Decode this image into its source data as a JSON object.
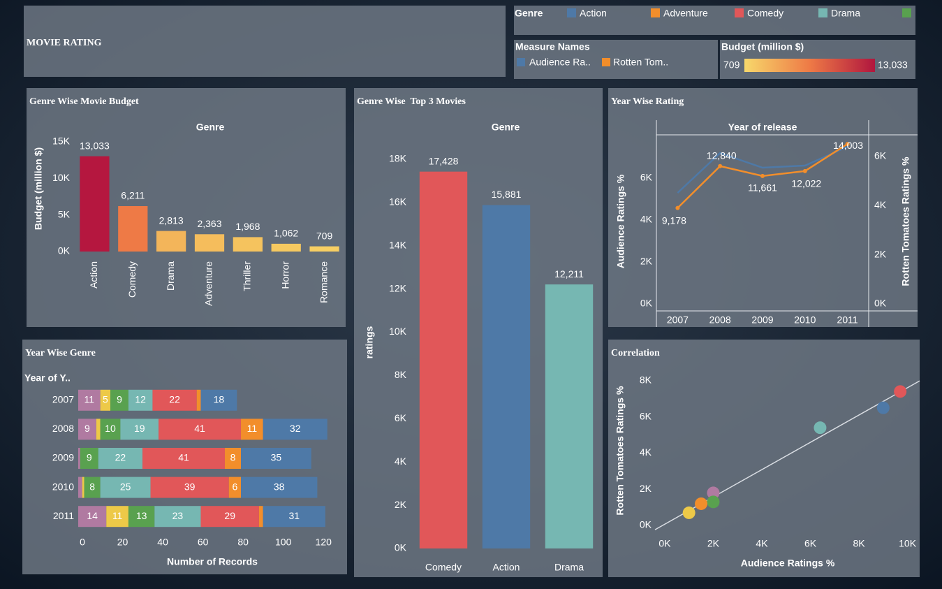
{
  "header": {
    "title": "MOVIE RATING"
  },
  "legends": {
    "genre_title": "Genre",
    "measure_title": "Measure Names",
    "budget": {
      "title": "Budget (million $)",
      "min": 709,
      "max": {
        "value": 13033,
        "label": "13,033"
      },
      "colors": [
        "#f7d86b",
        "#ee7a46",
        "#b0163e"
      ]
    }
  },
  "chart_data": [
    {
      "type": "bar",
      "title": "Genre Wise Movie Budget",
      "x_label": "Genre",
      "y_label": "Budget (million $)",
      "categories": [
        "Action",
        "Comedy",
        "Drama",
        "Adventure",
        "Thriller",
        "Horror",
        "Romance"
      ],
      "values": [
        13033,
        6211,
        2813,
        2363,
        1968,
        1062,
        709
      ],
      "value_labels": [
        "13,033",
        "6,211",
        "2,813",
        "2,363",
        "1,968",
        "1,062",
        "709"
      ],
      "colors": [
        "#b5173f",
        "#ee7a46",
        "#f3b55a",
        "#f5bd5c",
        "#f5c35e",
        "#f6c960",
        "#f7cf63"
      ],
      "ylim": [
        0,
        15000
      ],
      "yticks": [
        {
          "value": 0,
          "label": "0K"
        },
        {
          "value": 5000,
          "label": "5K"
        },
        {
          "value": 10000,
          "label": "10K"
        },
        {
          "value": 15000,
          "label": "15K"
        }
      ]
    },
    {
      "type": "bar",
      "title": "Genre Wise  Top 3 Movies",
      "x_label": "Genre",
      "y_label": "ratings",
      "categories": [
        "Comedy",
        "Action",
        "Drama"
      ],
      "values": [
        17428,
        15881,
        12211
      ],
      "value_labels": [
        "17,428",
        "15,881",
        "12,211"
      ],
      "colors": [
        "#e15759",
        "#4e79a7",
        "#76b7b2"
      ],
      "ylim": [
        0,
        19000
      ],
      "yticks": [
        {
          "value": 0,
          "label": "0K"
        },
        {
          "value": 2000,
          "label": "2K"
        },
        {
          "value": 4000,
          "label": "4K"
        },
        {
          "value": 6000,
          "label": "6K"
        },
        {
          "value": 8000,
          "label": "8K"
        },
        {
          "value": 10000,
          "label": "10K"
        },
        {
          "value": 12000,
          "label": "12K"
        },
        {
          "value": 14000,
          "label": "14K"
        },
        {
          "value": 16000,
          "label": "16K"
        },
        {
          "value": 18000,
          "label": "18K"
        }
      ]
    },
    {
      "type": "line",
      "title": "Year Wise Rating",
      "x_label": "Year of release",
      "y_label": "Audience Ratings %",
      "y2_label": "Rotten Tomatoes Ratings %",
      "categories": [
        "2007",
        "2008",
        "2009",
        "2010",
        "2011"
      ],
      "series": [
        {
          "name": "Audience Ra..",
          "color": "#4e79a7",
          "values": [
            5300,
            7200,
            6500,
            6600,
            7500
          ]
        },
        {
          "name": "Rotten Tom..",
          "color": "#f28e2b",
          "values": [
            3900,
            5600,
            5200,
            5400,
            6500
          ],
          "axis": "y2",
          "markers": true
        }
      ],
      "annotations": [
        {
          "value": 9178,
          "label": "9,178"
        },
        {
          "value": 12840,
          "label": "12,840"
        },
        {
          "value": 11661,
          "label": "11,661"
        },
        {
          "value": 12022,
          "label": "12,022"
        },
        {
          "value": 14003,
          "label": "14,003"
        }
      ],
      "ylim": [
        0,
        8100
      ],
      "yticks": [
        {
          "value": 0,
          "label": "0K"
        },
        {
          "value": 2000,
          "label": "2K"
        },
        {
          "value": 4000,
          "label": "4K"
        },
        {
          "value": 6000,
          "label": "6K"
        }
      ],
      "y2lim": [
        0,
        6900
      ],
      "y2ticks": [
        {
          "value": 0,
          "label": "0K"
        },
        {
          "value": 2000,
          "label": "2K"
        },
        {
          "value": 4000,
          "label": "4K"
        },
        {
          "value": 6000,
          "label": "6K"
        }
      ]
    },
    {
      "type": "barh",
      "title": "Year Wise Genre",
      "y_label": "Year of Y..",
      "x_label": "Number of Records",
      "categories": [
        "2007",
        "2008",
        "2009",
        "2010",
        "2011"
      ],
      "series": [
        {
          "name": null,
          "color": "#b07aa1",
          "values": [
            11,
            9,
            1,
            2,
            14
          ]
        },
        {
          "name": null,
          "color": "#edc948",
          "values": [
            5,
            2,
            0,
            1,
            11
          ]
        },
        {
          "name": null,
          "color": "#59a14f",
          "values": [
            9,
            10,
            9,
            8,
            13
          ]
        },
        {
          "name": "Drama",
          "color": "#76b7b2",
          "values": [
            12,
            19,
            22,
            25,
            23
          ]
        },
        {
          "name": "Comedy",
          "color": "#e15759",
          "values": [
            22,
            41,
            41,
            39,
            29
          ]
        },
        {
          "name": "Adventure",
          "color": "#f28e2b",
          "values": [
            2,
            11,
            8,
            6,
            2
          ]
        },
        {
          "name": "Action",
          "color": "#4e79a7",
          "values": [
            18,
            32,
            35,
            38,
            31
          ]
        }
      ],
      "xlim": [
        0,
        130
      ],
      "xticks": [
        0,
        20,
        40,
        60,
        80,
        100,
        120
      ]
    },
    {
      "type": "scatter",
      "title": "Correlation",
      "x_label": "Audience Ratings %",
      "y_label": "Rotten Tomatoes Ratings %",
      "x": [
        9700,
        9000,
        6400,
        2000,
        2000,
        1500,
        1000
      ],
      "values": [
        7400,
        6500,
        5400,
        1800,
        1300,
        1200,
        700
      ],
      "colors": [
        "#e15759",
        "#4e79a7",
        "#76b7b2",
        "#b07aa1",
        "#59a14f",
        "#f28e2b",
        "#edc948"
      ],
      "trend_line": true,
      "xlim": [
        -400,
        10500
      ],
      "xticks": [
        {
          "value": 0,
          "label": "0K"
        },
        {
          "value": 2000,
          "label": "2K"
        },
        {
          "value": 4000,
          "label": "4K"
        },
        {
          "value": 6000,
          "label": "6K"
        },
        {
          "value": 8000,
          "label": "8K"
        },
        {
          "value": 10000,
          "label": "10K"
        }
      ],
      "ylim": [
        -500,
        8300
      ],
      "yticks": [
        {
          "value": 0,
          "label": "0K"
        },
        {
          "value": 2000,
          "label": "2K"
        },
        {
          "value": 4000,
          "label": "4K"
        },
        {
          "value": 6000,
          "label": "6K"
        },
        {
          "value": 8000,
          "label": "8K"
        }
      ]
    }
  ]
}
